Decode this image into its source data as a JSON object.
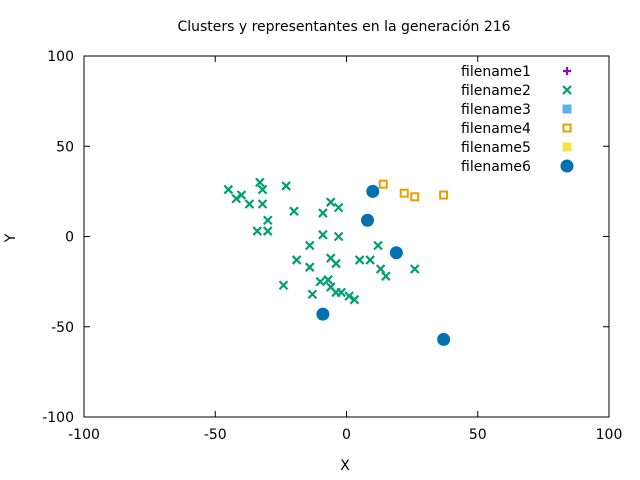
{
  "chart_data": {
    "type": "scatter",
    "title": "Clusters y representantes en la generación 216",
    "xlabel": "X",
    "ylabel": "Y",
    "xlim": [
      -100,
      100
    ],
    "ylim": [
      -100,
      100
    ],
    "xticks": [
      -100,
      -50,
      0,
      50,
      100
    ],
    "yticks": [
      -100,
      -50,
      0,
      50,
      100
    ],
    "grid": false,
    "legend_position": "top-right",
    "series": [
      {
        "name": "filename1",
        "marker": "plus",
        "color": "#9400D3",
        "points": []
      },
      {
        "name": "filename2",
        "marker": "x",
        "color": "#009E73",
        "points": [
          [
            -45,
            26
          ],
          [
            -42,
            21
          ],
          [
            -40,
            23
          ],
          [
            -37,
            18
          ],
          [
            -33,
            30
          ],
          [
            -32,
            26
          ],
          [
            -32,
            18
          ],
          [
            -34,
            3
          ],
          [
            -30,
            9
          ],
          [
            -30,
            3
          ],
          [
            -23,
            28
          ],
          [
            -20,
            14
          ],
          [
            -9,
            13
          ],
          [
            -6,
            19
          ],
          [
            -3,
            16
          ],
          [
            -9,
            1
          ],
          [
            -3,
            0
          ],
          [
            -14,
            -5
          ],
          [
            -19,
            -13
          ],
          [
            -14,
            -17
          ],
          [
            -6,
            -12
          ],
          [
            -4,
            -15
          ],
          [
            -24,
            -27
          ],
          [
            -10,
            -25
          ],
          [
            -7,
            -24
          ],
          [
            -6,
            -28
          ],
          [
            -4,
            -31
          ],
          [
            -2,
            -31
          ],
          [
            1,
            -33
          ],
          [
            3,
            -35
          ],
          [
            -13,
            -32
          ],
          [
            5,
            -13
          ],
          [
            9,
            -13
          ],
          [
            12,
            -5
          ],
          [
            13,
            -18
          ],
          [
            15,
            -22
          ],
          [
            26,
            -18
          ]
        ]
      },
      {
        "name": "filename3",
        "marker": "square-filled",
        "color": "#56B4E9",
        "points": []
      },
      {
        "name": "filename4",
        "marker": "square-open",
        "color": "#E69F00",
        "points": [
          [
            14,
            29
          ],
          [
            22,
            24
          ],
          [
            26,
            22
          ],
          [
            37,
            23
          ]
        ]
      },
      {
        "name": "filename5",
        "marker": "square-filled",
        "color": "#F0E442",
        "points": []
      },
      {
        "name": "filename6",
        "marker": "circle-filled",
        "color": "#0072B2",
        "points": [
          [
            10,
            25
          ],
          [
            8,
            9
          ],
          [
            19,
            -9
          ],
          [
            -9,
            -43
          ],
          [
            37,
            -57
          ]
        ]
      }
    ]
  }
}
